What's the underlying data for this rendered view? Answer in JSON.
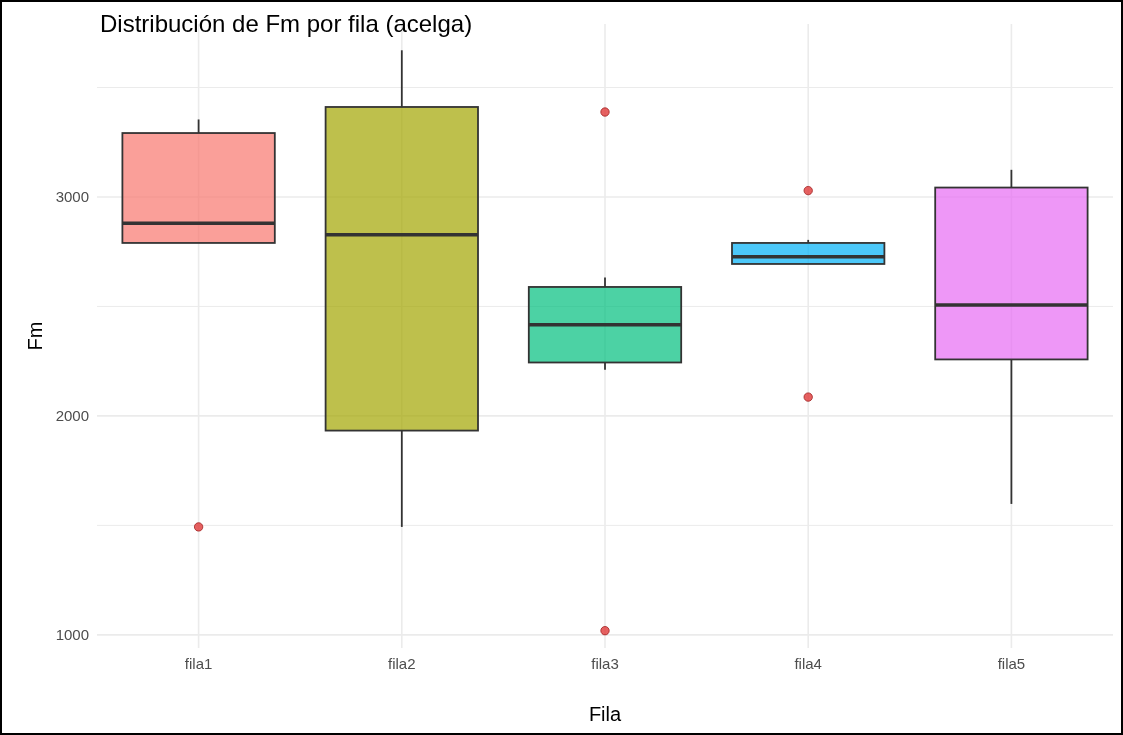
{
  "chart_data": {
    "type": "box",
    "title": "Distribución de Fm por fila (acelga)",
    "xlabel": "Fila",
    "ylabel": "Fm",
    "categories": [
      "fila1",
      "fila2",
      "fila3",
      "fila4",
      "fila5"
    ],
    "colors": [
      "#f8766d",
      "#a3a500",
      "#00bf7d",
      "#00b0f6",
      "#e76bf3"
    ],
    "boxes": [
      {
        "low": 2790,
        "q1": 2790,
        "median": 2880,
        "q3": 3292,
        "high": 3354,
        "outliers": [
          1493
        ]
      },
      {
        "low": 1493,
        "q1": 1933,
        "median": 2828,
        "q3": 3411,
        "high": 3670
      },
      {
        "low": 2211,
        "q1": 2244,
        "median": 2416,
        "q3": 2589,
        "high": 2632,
        "outliers": [
          3388,
          1019
        ]
      },
      {
        "low": 2694,
        "q1": 2694,
        "median": 2727,
        "q3": 2790,
        "high": 2804,
        "outliers": [
          3029,
          2086
        ]
      },
      {
        "low": 1598,
        "q1": 2258,
        "median": 2507,
        "q3": 3043,
        "high": 3124
      }
    ],
    "ylim": [
      940,
      3790
    ],
    "yticks": [
      1000,
      {
        "value": 1500,
        "label": null
      },
      2000,
      {
        "value": 2500,
        "label": null
      },
      3000,
      {
        "value": 3500,
        "label": null
      }
    ],
    "grid": true
  }
}
